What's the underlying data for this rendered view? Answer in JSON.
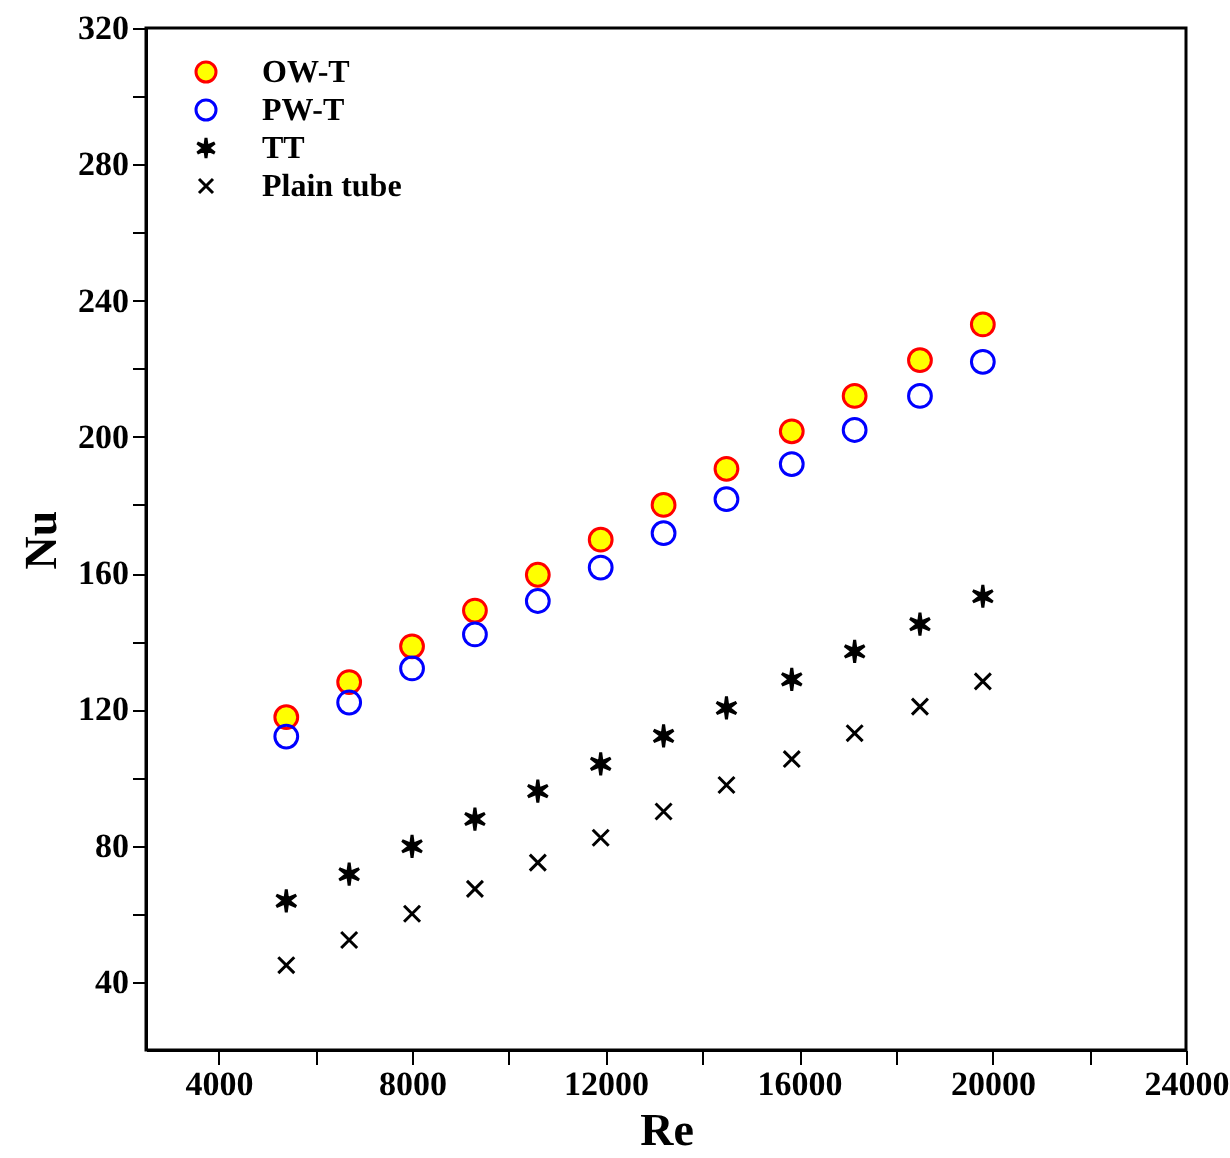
{
  "chart_data": {
    "type": "scatter",
    "xlabel": "Re",
    "ylabel": "Nu",
    "x": [
      5400,
      6700,
      8000,
      9300,
      10600,
      11900,
      13200,
      14500,
      15850,
      17150,
      18500,
      19800
    ],
    "series": [
      {
        "name": "OW-T",
        "color": "#ffff00",
        "marker": "circle",
        "values": [
          117.7,
          128,
          138.5,
          149,
          159.5,
          169.8,
          180,
          190.6,
          201.6,
          212,
          222.5,
          233
        ]
      },
      {
        "name": "PW-T",
        "color": "#0000ff",
        "marker": "circle",
        "values": [
          112,
          122,
          132,
          142,
          151.8,
          161.6,
          171.7,
          181.7,
          192,
          202,
          212,
          222
        ]
      },
      {
        "name": "TT",
        "color": "#000000",
        "values": [
          63.8,
          71.6,
          79.8,
          87.8,
          96,
          104,
          112.2,
          120.4,
          128.8,
          137,
          145,
          153.2
        ]
      },
      {
        "name": "Plain tube",
        "color": "#000000",
        "marker": "cross",
        "values": [
          44.9,
          52.3,
          60,
          67.3,
          75,
          82.3,
          90,
          97.8,
          105.4,
          113,
          120.8,
          128.2
        ]
      }
    ],
    "xlim": [
      2500,
      24000
    ],
    "xticks": [
      4000,
      {
        "value": 6000,
        "label": null
      },
      8000,
      {
        "value": 10000,
        "label": null
      },
      12000,
      {
        "value": 14000,
        "label": null
      },
      16000,
      {
        "value": 18000,
        "label": null
      },
      20000,
      {
        "value": 22000,
        "label": null
      },
      24000
    ],
    "ylim": [
      20,
      320
    ],
    "yticks": [
      40,
      {
        "value": 60,
        "label": null
      },
      80,
      {
        "value": 100,
        "label": null
      },
      120,
      {
        "value": 140,
        "label": null
      },
      160,
      {
        "value": 180,
        "label": null
      },
      200,
      {
        "value": 220,
        "label": null
      },
      240,
      {
        "value": 260,
        "label": null
      },
      280,
      {
        "value": 300,
        "label": null
      },
      320
    ],
    "legend": "top left",
    "grid": false
  }
}
